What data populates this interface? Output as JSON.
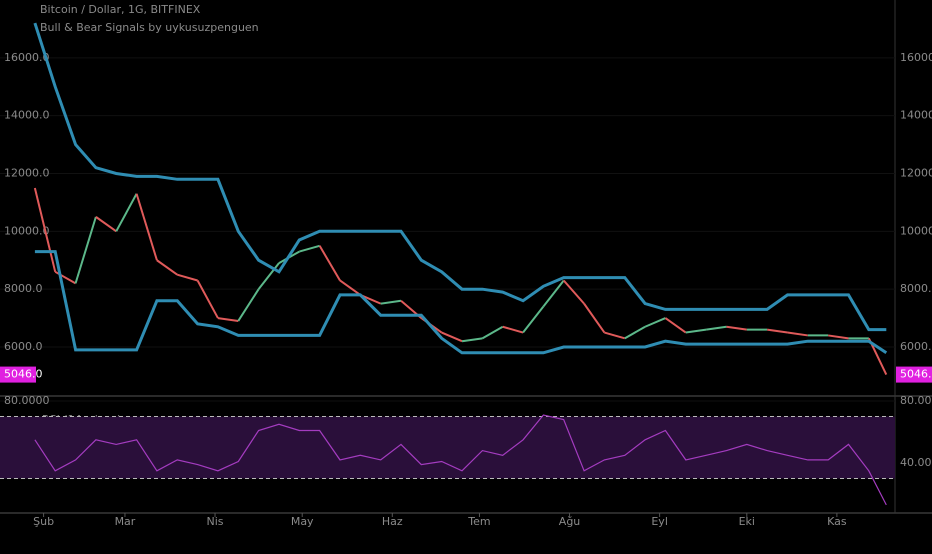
{
  "chart_data": [
    {
      "type": "line",
      "title": "Bitcoin / Dollar, 1G, BITFINEX",
      "subtitle": "Bull & Bear Signals by uykusuzpenguen",
      "x": [
        -3,
        4,
        11,
        18,
        25,
        32,
        39,
        46,
        53,
        60,
        67,
        74,
        81,
        88,
        95,
        102,
        109,
        116,
        123,
        130,
        137,
        144,
        151,
        158,
        165,
        172,
        179,
        186,
        193,
        200,
        207,
        214,
        221,
        228,
        235,
        242,
        249,
        256,
        263,
        270,
        277,
        284,
        290
      ],
      "xlim": [
        -15,
        293
      ],
      "ylim": [
        4340,
        18000
      ],
      "yticks": [
        {
          "value": 6000,
          "label": "6000.0"
        },
        {
          "value": 8000,
          "label": "8000.0"
        },
        {
          "value": 10000,
          "label": "10000.0"
        },
        {
          "value": 12000,
          "label": "12000.0"
        },
        {
          "value": 14000,
          "label": "14000.0"
        },
        {
          "value": 16000,
          "label": "16000.0"
        }
      ],
      "series": [
        {
          "name": "close",
          "color": "#5cb88a",
          "down_color": "#e05a5a",
          "values": [
            11500,
            8600,
            8200,
            10500,
            10000,
            11300,
            9000,
            8500,
            8300,
            7000,
            6900,
            8000,
            8900,
            9300,
            9500,
            8300,
            7800,
            7500,
            7600,
            7000,
            6500,
            6200,
            6300,
            6700,
            6500,
            7400,
            8300,
            7500,
            6500,
            6300,
            6700,
            7000,
            6500,
            6600,
            6700,
            6600,
            6600,
            6500,
            6400,
            6400,
            6300,
            6300,
            5046
          ]
        },
        {
          "name": "upper",
          "color": "#2f8db3",
          "values": [
            17200,
            15000,
            13000,
            12200,
            12000,
            11900,
            11900,
            11800,
            11800,
            11800,
            10000,
            9000,
            8600,
            9700,
            10000,
            10000,
            10000,
            10000,
            10000,
            9000,
            8600,
            8000,
            8000,
            7900,
            7600,
            8100,
            8400,
            8400,
            8400,
            8400,
            7500,
            7300,
            7300,
            7300,
            7300,
            7300,
            7300,
            7800,
            7800,
            7800,
            7800,
            6600,
            6600
          ]
        },
        {
          "name": "lower",
          "color": "#2f8db3",
          "values": [
            9300,
            9300,
            5900,
            5900,
            5900,
            5900,
            7600,
            7600,
            6800,
            6700,
            6400,
            6400,
            6400,
            6400,
            6400,
            7800,
            7800,
            7100,
            7100,
            7100,
            6300,
            5800,
            5800,
            5800,
            5800,
            5800,
            6000,
            6000,
            6000,
            6000,
            6000,
            6200,
            6100,
            6100,
            6100,
            6100,
            6100,
            6100,
            6200,
            6200,
            6200,
            6200,
            5800
          ]
        }
      ],
      "price_tag": {
        "value": 5046,
        "label": "5046.0",
        "color": "#e020e0"
      }
    },
    {
      "type": "line",
      "title": "RSI (14, close)",
      "x": [
        -3,
        4,
        11,
        18,
        25,
        32,
        39,
        46,
        53,
        60,
        67,
        74,
        81,
        88,
        95,
        102,
        109,
        116,
        123,
        130,
        137,
        144,
        151,
        158,
        165,
        172,
        179,
        186,
        193,
        200,
        207,
        214,
        221,
        228,
        235,
        242,
        249,
        256,
        263,
        270,
        277,
        284,
        290
      ],
      "xlim": [
        -15,
        293
      ],
      "ylim": [
        9.7,
        82.6
      ],
      "yticks": [
        {
          "value": 80,
          "label": "80.0000"
        },
        {
          "value": 40,
          "label": "40.0000"
        }
      ],
      "bands": [
        30,
        70
      ],
      "band_color": "#2a0f3a",
      "xticks": [
        {
          "value": 0,
          "label": "Şub"
        },
        {
          "value": 28,
          "label": "Mar"
        },
        {
          "value": 59,
          "label": "Nis"
        },
        {
          "value": 89,
          "label": "May"
        },
        {
          "value": 120,
          "label": "Haz"
        },
        {
          "value": 150,
          "label": "Tem"
        },
        {
          "value": 181,
          "label": "Ağu"
        },
        {
          "value": 212,
          "label": "Eyl"
        },
        {
          "value": 242,
          "label": "Eki"
        },
        {
          "value": 273,
          "label": "Kas"
        }
      ],
      "series": [
        {
          "name": "RSI",
          "color": "#a43cc0",
          "values": [
            55,
            35,
            42,
            55,
            52,
            55,
            35,
            42,
            39,
            35,
            41,
            61,
            65,
            61,
            61,
            42,
            45,
            42,
            52,
            39,
            41,
            35,
            48,
            45,
            55,
            71,
            68,
            35,
            42,
            45,
            55,
            61,
            42,
            45,
            48,
            52,
            48,
            45,
            42,
            42,
            52,
            35,
            13
          ]
        }
      ]
    }
  ]
}
